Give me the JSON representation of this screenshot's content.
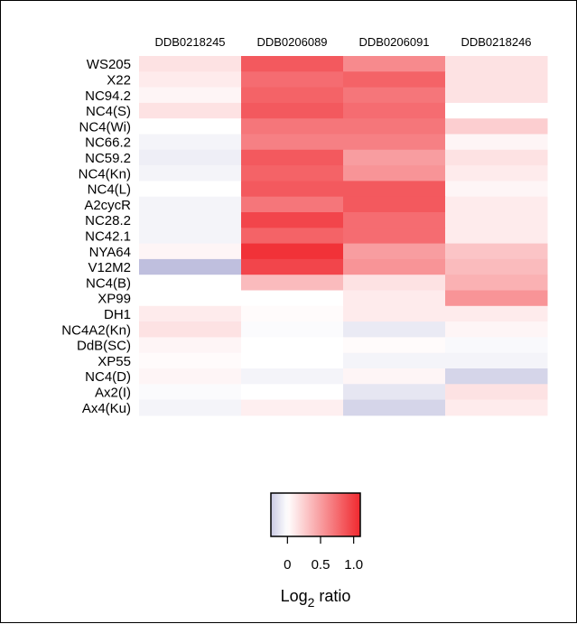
{
  "chart_data": {
    "type": "heatmap",
    "columns": [
      "DDB0218245",
      "DDB0206089",
      "DDB0206091",
      "DDB0218246"
    ],
    "rows": [
      "WS205",
      "X22",
      "NC94.2",
      "NC4(S)",
      "NC4(Wi)",
      "NC66.2",
      "NC59.2",
      "NC4(Kn)",
      "NC4(L)",
      "A2cycR",
      "NC28.2",
      "NC42.1",
      "NYA64",
      "V12M2",
      "NC4(B)",
      "XP99",
      "DH1",
      "NC4A2(Kn)",
      "DdB(SC)",
      "XP55",
      "NC4(D)",
      "Ax2(I)",
      "Ax4(Ku)"
    ],
    "values": [
      [
        0.15,
        0.85,
        0.6,
        0.15
      ],
      [
        0.1,
        0.75,
        0.8,
        0.15
      ],
      [
        0.05,
        0.8,
        0.7,
        0.15
      ],
      [
        0.15,
        0.85,
        0.75,
        0.0
      ],
      [
        0.0,
        0.7,
        0.7,
        0.25
      ],
      [
        -0.05,
        0.65,
        0.65,
        0.05
      ],
      [
        -0.08,
        0.85,
        0.5,
        0.15
      ],
      [
        -0.05,
        0.8,
        0.55,
        0.1
      ],
      [
        0.0,
        0.85,
        0.85,
        0.05
      ],
      [
        -0.05,
        0.7,
        0.85,
        0.1
      ],
      [
        -0.05,
        0.95,
        0.75,
        0.1
      ],
      [
        -0.05,
        0.8,
        0.75,
        0.1
      ],
      [
        0.05,
        1.05,
        0.5,
        0.3
      ],
      [
        -0.3,
        0.95,
        0.55,
        0.35
      ],
      [
        0.0,
        0.35,
        0.15,
        0.4
      ],
      [
        0.0,
        0.0,
        0.1,
        0.55
      ],
      [
        0.1,
        0.02,
        0.1,
        0.1
      ],
      [
        0.15,
        -0.02,
        -0.1,
        0.05
      ],
      [
        0.05,
        0.0,
        0.02,
        -0.03
      ],
      [
        0.02,
        0.0,
        -0.05,
        -0.05
      ],
      [
        0.05,
        -0.05,
        0.05,
        -0.2
      ],
      [
        -0.02,
        0.0,
        -0.12,
        0.15
      ],
      [
        -0.05,
        0.08,
        -0.2,
        0.1
      ]
    ],
    "color_scale": {
      "colors": [
        "#00007a",
        "#ffffff",
        "#f0282e"
      ],
      "domain": [
        -1.2,
        0.0,
        1.1
      ]
    },
    "legend": {
      "ticks": [
        0,
        0.5,
        1.0
      ],
      "tick_labels": [
        "0",
        "0.5",
        "1.0"
      ],
      "range": [
        -0.25,
        1.1
      ],
      "title_main": "Log",
      "title_sub": "2",
      "title_rest": " ratio"
    }
  }
}
